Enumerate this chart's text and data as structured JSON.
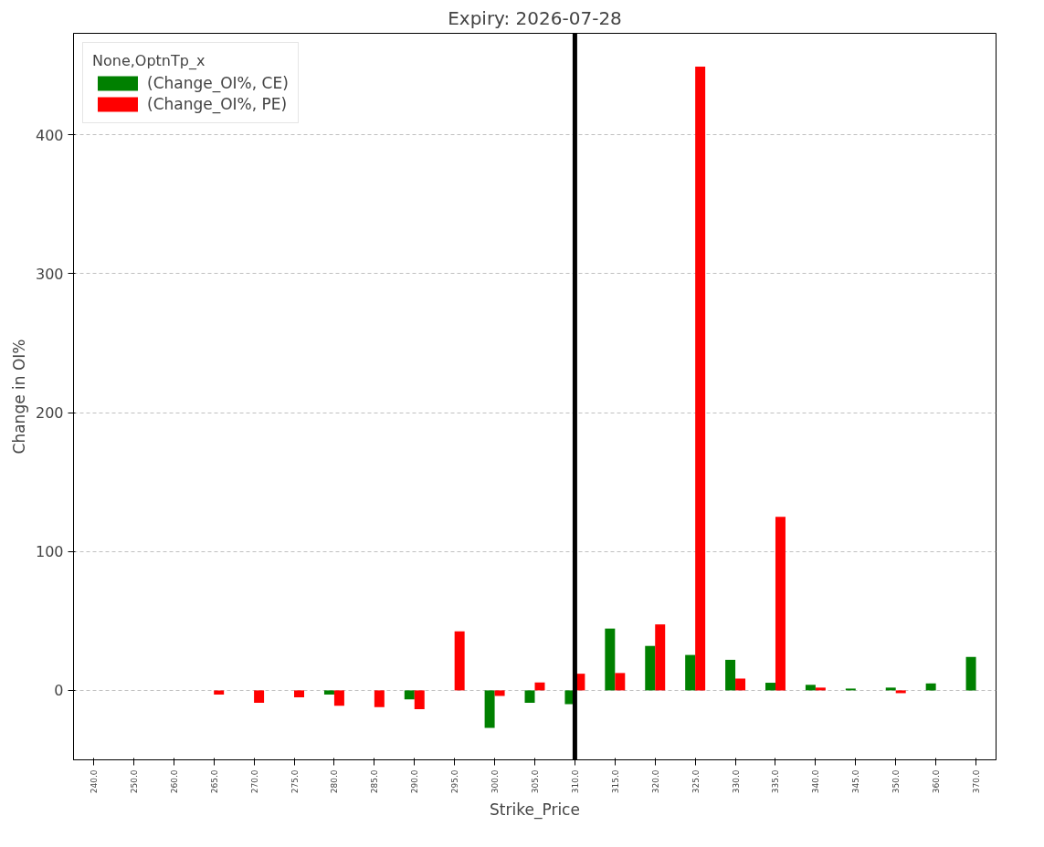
{
  "chart_data": {
    "type": "bar",
    "title": "Expiry: 2026-07-28",
    "xlabel": "Strike_Price",
    "ylabel": "Change in OI%",
    "legend_title": "None,OptnTp_x",
    "categories": [
      "240.0",
      "250.0",
      "260.0",
      "265.0",
      "270.0",
      "275.0",
      "280.0",
      "285.0",
      "290.0",
      "295.0",
      "300.0",
      "305.0",
      "310.0",
      "315.0",
      "320.0",
      "325.0",
      "330.0",
      "335.0",
      "340.0",
      "345.0",
      "350.0",
      "360.0",
      "370.0"
    ],
    "series": [
      {
        "name": "(Change_OI%, CE)",
        "color": "#008000",
        "values": [
          null,
          null,
          null,
          null,
          null,
          null,
          -3,
          null,
          -6.5,
          null,
          -27,
          -9,
          -10,
          44.5,
          32,
          25.5,
          22,
          5.5,
          4,
          1.3,
          2,
          5,
          24
        ]
      },
      {
        "name": "(Change_OI%, PE)",
        "color": "#ff0000",
        "values": [
          null,
          null,
          null,
          -3,
          -9,
          -5,
          -11,
          -12,
          -13.5,
          42.5,
          -4,
          5.7,
          12,
          12.5,
          47.5,
          449,
          8.5,
          125,
          2,
          null,
          -2,
          null,
          null
        ]
      }
    ],
    "ylim": [
      -50,
      473
    ],
    "yticks": [
      0,
      100,
      200,
      300,
      400
    ],
    "grid": "y",
    "legend": "top left",
    "ref_lines": [
      {
        "axis": "x",
        "value": "310.0",
        "color": "#000000"
      }
    ]
  }
}
